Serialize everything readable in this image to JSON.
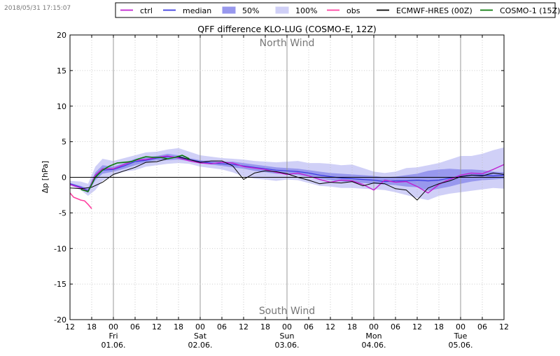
{
  "timestamp": "2018/05/31 17:15:07",
  "chart_data": {
    "type": "line",
    "title": "QFF difference KLO-LUG (COSMO-E, 12Z)",
    "ylabel": "Δp [hPa]",
    "xlabel": "",
    "ylim": [
      -20,
      20
    ],
    "yticks": [
      -20,
      -15,
      -10,
      -5,
      0,
      5,
      10,
      15,
      20
    ],
    "xlim": [
      0,
      120
    ],
    "x_unit": "hours since 2018-05-31 12:00",
    "x_ticks": [
      {
        "x": 0,
        "label": "12"
      },
      {
        "x": 6,
        "label": "18"
      },
      {
        "x": 12,
        "label": "00",
        "sub1": "Fri",
        "sub2": "01.06."
      },
      {
        "x": 18,
        "label": "06"
      },
      {
        "x": 24,
        "label": "12"
      },
      {
        "x": 30,
        "label": "18"
      },
      {
        "x": 36,
        "label": "00",
        "sub1": "Sat",
        "sub2": "02.06."
      },
      {
        "x": 42,
        "label": "06"
      },
      {
        "x": 48,
        "label": "12"
      },
      {
        "x": 54,
        "label": "18"
      },
      {
        "x": 60,
        "label": "00",
        "sub1": "Sun",
        "sub2": "03.06."
      },
      {
        "x": 66,
        "label": "06"
      },
      {
        "x": 72,
        "label": "12"
      },
      {
        "x": 78,
        "label": "18"
      },
      {
        "x": 84,
        "label": "00",
        "sub1": "Mon",
        "sub2": "04.06."
      },
      {
        "x": 90,
        "label": "06"
      },
      {
        "x": 96,
        "label": "12"
      },
      {
        "x": 102,
        "label": "18"
      },
      {
        "x": 108,
        "label": "00",
        "sub1": "Tue",
        "sub2": "05.06."
      },
      {
        "x": 114,
        "label": "06"
      },
      {
        "x": 120,
        "label": "12"
      }
    ],
    "annotations": [
      {
        "text": "North Wind",
        "x": 60,
        "y": 18.8
      },
      {
        "text": "South Wind",
        "x": 60,
        "y": -18.8
      }
    ],
    "legend": [
      {
        "name": "ctrl",
        "kind": "line",
        "color": "#c020d0"
      },
      {
        "name": "median",
        "kind": "line",
        "color": "#3a3ae0"
      },
      {
        "name": "50%",
        "kind": "patch",
        "color": "#9898ee"
      },
      {
        "name": "100%",
        "kind": "patch",
        "color": "#d0d0f7"
      },
      {
        "name": "obs",
        "kind": "line",
        "color": "#ff40a0"
      },
      {
        "name": "ECMWF-HRES (00Z)",
        "kind": "line",
        "color": "#000000"
      },
      {
        "name": "COSMO-1 (15Z)",
        "kind": "line",
        "color": "#0a7a0a"
      }
    ],
    "legend_position": "top",
    "grid": true,
    "bands": [
      {
        "name": "100%",
        "color": "#d0d0f7",
        "x": [
          0,
          3,
          5,
          7,
          9,
          12,
          15,
          18,
          21,
          24,
          27,
          30,
          33,
          36,
          39,
          42,
          45,
          48,
          51,
          54,
          57,
          60,
          63,
          66,
          69,
          72,
          75,
          78,
          81,
          84,
          87,
          90,
          93,
          96,
          99,
          102,
          105,
          108,
          111,
          114,
          117,
          120
        ],
        "upper": [
          -0.5,
          -0.6,
          -0.9,
          1.5,
          2.6,
          2.3,
          2.7,
          3.1,
          3.5,
          3.6,
          3.9,
          4.1,
          3.6,
          3.1,
          2.9,
          2.7,
          2.6,
          2.5,
          2.3,
          2.2,
          2.1,
          2.2,
          2.3,
          2.0,
          2.0,
          1.9,
          1.7,
          1.8,
          1.3,
          0.8,
          0.6,
          0.8,
          1.3,
          1.4,
          1.7,
          2.0,
          2.5,
          3.0,
          3.0,
          3.3,
          3.8,
          4.2
        ],
        "lower": [
          -1.2,
          -1.8,
          -2.6,
          -1.8,
          -0.5,
          0.3,
          0.8,
          1.0,
          1.5,
          1.7,
          1.9,
          2.0,
          1.9,
          1.5,
          1.3,
          1.1,
          0.7,
          0.1,
          -0.2,
          -0.3,
          -0.5,
          -0.3,
          -0.4,
          -0.8,
          -1.2,
          -1.3,
          -1.5,
          -1.5,
          -1.6,
          -1.7,
          -1.8,
          -2.1,
          -2.5,
          -2.9,
          -3.2,
          -2.6,
          -2.3,
          -2.1,
          -1.9,
          -1.7,
          -1.5,
          -1.6
        ]
      },
      {
        "name": "50%",
        "color": "#9898ee",
        "x": [
          0,
          3,
          5,
          7,
          9,
          12,
          15,
          18,
          21,
          24,
          27,
          30,
          33,
          36,
          39,
          42,
          45,
          48,
          51,
          54,
          57,
          60,
          63,
          66,
          69,
          72,
          75,
          78,
          81,
          84,
          87,
          90,
          93,
          96,
          99,
          102,
          105,
          108,
          111,
          114,
          117,
          120
        ],
        "upper": [
          -0.8,
          -1.2,
          -1.6,
          0.7,
          1.7,
          1.5,
          2.0,
          2.6,
          2.8,
          3.0,
          3.3,
          3.1,
          2.7,
          2.4,
          2.3,
          2.2,
          2.2,
          2.0,
          1.8,
          1.6,
          1.4,
          1.3,
          1.2,
          1.0,
          0.8,
          0.6,
          0.5,
          0.4,
          0.3,
          0.2,
          0.0,
          0.1,
          0.3,
          0.5,
          0.9,
          1.1,
          1.2,
          1.1,
          1.1,
          1.0,
          0.8,
          0.7
        ],
        "lower": [
          -1.0,
          -1.6,
          -2.2,
          -0.4,
          0.5,
          0.8,
          1.2,
          1.7,
          2.1,
          2.4,
          2.4,
          2.5,
          2.3,
          2.0,
          1.8,
          1.6,
          1.4,
          1.2,
          0.9,
          0.7,
          0.5,
          0.5,
          0.3,
          0.1,
          -0.2,
          -0.4,
          -0.6,
          -0.7,
          -0.8,
          -0.9,
          -1.0,
          -1.1,
          -1.3,
          -1.4,
          -1.9,
          -1.6,
          -1.3,
          -0.9,
          -0.6,
          -0.4,
          -0.3,
          -0.2
        ]
      }
    ],
    "series": [
      {
        "name": "median",
        "color": "#3a3ae0",
        "width": 1.2,
        "x": [
          0,
          3,
          5,
          7,
          9,
          12,
          15,
          18,
          21,
          24,
          27,
          30,
          33,
          36,
          39,
          42,
          45,
          48,
          51,
          54,
          57,
          60,
          63,
          66,
          69,
          72,
          75,
          78,
          81,
          84,
          87,
          90,
          93,
          96,
          99,
          102,
          105,
          108,
          111,
          114,
          117,
          120
        ],
        "y": [
          -0.9,
          -1.4,
          -1.9,
          0.2,
          1.0,
          1.1,
          1.6,
          2.2,
          2.4,
          2.7,
          2.9,
          2.8,
          2.5,
          2.2,
          2.0,
          1.9,
          1.8,
          1.6,
          1.4,
          1.2,
          1.0,
          0.9,
          0.8,
          0.6,
          0.3,
          0.1,
          -0.1,
          -0.2,
          -0.3,
          -0.4,
          -0.6,
          -0.5,
          -0.5,
          -0.4,
          -0.5,
          -0.4,
          -0.1,
          0.1,
          0.3,
          0.3,
          0.2,
          0.3
        ]
      },
      {
        "name": "ctrl",
        "color": "#c020d0",
        "width": 1.4,
        "x": [
          0,
          3,
          5,
          7,
          9,
          12,
          15,
          18,
          21,
          24,
          27,
          30,
          33,
          36,
          39,
          42,
          45,
          48,
          51,
          54,
          57,
          60,
          63,
          66,
          69,
          72,
          75,
          78,
          81,
          84,
          87,
          90,
          93,
          96,
          99,
          102,
          104,
          108,
          111,
          114,
          117,
          120
        ],
        "y": [
          -1.0,
          -1.5,
          -2.0,
          0.3,
          1.2,
          1.2,
          1.8,
          2.4,
          2.5,
          2.8,
          3.0,
          2.7,
          2.3,
          2.0,
          1.9,
          2.1,
          2.0,
          1.5,
          1.3,
          1.1,
          0.7,
          0.4,
          0.6,
          0.2,
          -0.3,
          -0.7,
          -0.4,
          -0.5,
          -1.0,
          -1.8,
          -0.4,
          -0.7,
          -0.6,
          -1.3,
          -2.2,
          -1.0,
          -0.5,
          0.3,
          0.6,
          0.5,
          1.1,
          1.8
        ]
      },
      {
        "name": "obs",
        "color": "#ff40a0",
        "width": 1.6,
        "x": [
          0,
          1,
          2,
          3,
          4,
          5,
          6
        ],
        "y": [
          -2.2,
          -2.8,
          -3.0,
          -3.2,
          -3.3,
          -3.8,
          -4.4
        ]
      },
      {
        "name": "ECMWF-HRES (00Z)",
        "color": "#000000",
        "width": 1.0,
        "x": [
          0,
          3,
          6,
          9,
          12,
          15,
          18,
          21,
          24,
          27,
          30,
          33,
          36,
          39,
          42,
          45,
          48,
          51,
          54,
          57,
          60,
          63,
          66,
          69,
          72,
          75,
          78,
          81,
          84,
          87,
          90,
          93,
          96,
          99,
          102,
          105,
          108,
          111,
          114,
          117,
          120
        ],
        "y": [
          -1.5,
          -1.6,
          -1.4,
          -0.7,
          0.4,
          0.9,
          1.4,
          2.1,
          2.2,
          2.6,
          2.9,
          2.5,
          2.1,
          2.3,
          2.3,
          1.6,
          -0.3,
          0.6,
          0.9,
          0.8,
          0.5,
          0.0,
          -0.4,
          -0.9,
          -0.7,
          -0.8,
          -0.6,
          -1.2,
          -0.8,
          -0.9,
          -1.6,
          -1.8,
          -3.2,
          -1.5,
          -0.9,
          -0.5,
          0.1,
          0.3,
          0.2,
          0.6,
          0.4
        ]
      },
      {
        "name": "COSMO-1 (15Z)",
        "color": "#0a7a0a",
        "width": 1.6,
        "x": [
          3,
          5,
          7,
          9,
          11,
          13,
          15,
          17,
          19,
          21,
          23,
          25,
          27,
          29,
          31,
          33
        ],
        "y": [
          -1.7,
          -2.0,
          0.0,
          1.0,
          1.6,
          2.0,
          2.1,
          2.2,
          2.6,
          2.9,
          2.8,
          2.8,
          2.6,
          2.8,
          3.1,
          2.6
        ]
      }
    ]
  }
}
